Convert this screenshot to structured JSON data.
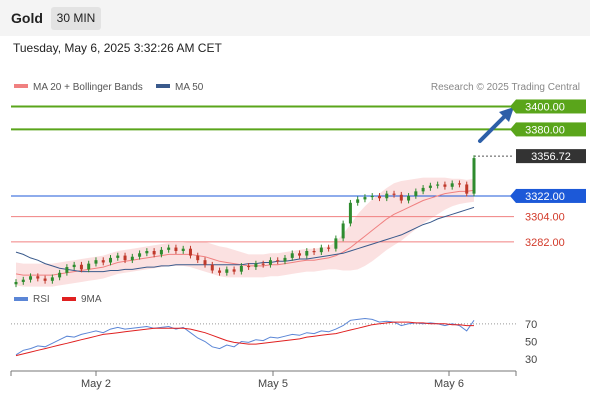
{
  "header": {
    "instrument": "Gold",
    "timeframe": "30 MIN"
  },
  "datetime": "Tuesday, May 6, 2025 3:32:26 AM CET",
  "legend": {
    "ma20_bb": "MA 20 + Bollinger Bands",
    "ma50": "MA 50",
    "rsi": "RSI",
    "ma9": "9MA",
    "credit": "Research © 2025 Trading Central"
  },
  "colors": {
    "resistance": "#5aa51b",
    "support": "#f08080",
    "pivot": "#1c59d8",
    "candle_up": "#2e8b2e",
    "candle_down": "#c0392b",
    "ma50": "#3a5a8c",
    "bb_band": "#fadcdc",
    "rsi": "#5b86d6",
    "rsi_ma": "#e02020",
    "arrow": "#2d5fa8",
    "last_price_box": "#333333"
  },
  "chart_data": [
    {
      "type": "candlestick",
      "x_labels": [
        "May 2",
        "May 5",
        "May 6"
      ],
      "ylim": [
        3240,
        3410
      ],
      "levels": [
        {
          "value": 3400.0,
          "label": "3400.00",
          "kind": "resistance"
        },
        {
          "value": 3380.0,
          "label": "3380.00",
          "kind": "resistance"
        },
        {
          "value": 3356.72,
          "label": "3356.72",
          "kind": "last"
        },
        {
          "value": 3322.0,
          "label": "3322.00",
          "kind": "pivot"
        },
        {
          "value": 3304.0,
          "label": "3304.00",
          "kind": "support"
        },
        {
          "value": 3282.0,
          "label": "3282.00",
          "kind": "support"
        }
      ],
      "close_series": [
        3247,
        3249,
        3252,
        3250,
        3248,
        3251,
        3255,
        3260,
        3262,
        3258,
        3263,
        3266,
        3264,
        3268,
        3270,
        3266,
        3269,
        3272,
        3274,
        3271,
        3275,
        3277,
        3274,
        3276,
        3270,
        3266,
        3262,
        3257,
        3255,
        3258,
        3256,
        3261,
        3260,
        3263,
        3262,
        3266,
        3265,
        3268,
        3272,
        3270,
        3274,
        3273,
        3277,
        3276,
        3285,
        3298,
        3316,
        3319,
        3321,
        3322,
        3320,
        3324,
        3323,
        3318,
        3322,
        3326,
        3329,
        3331,
        3332,
        3330,
        3333,
        3332,
        3324,
        3355
      ],
      "ma20_series": [
        3254,
        3253,
        3253,
        3253,
        3253,
        3253,
        3254,
        3255,
        3256,
        3257,
        3258,
        3259,
        3260,
        3262,
        3264,
        3265,
        3266,
        3267,
        3268,
        3269,
        3270,
        3271,
        3271,
        3271,
        3271,
        3270,
        3269,
        3267,
        3265,
        3264,
        3263,
        3262,
        3261,
        3261,
        3261,
        3262,
        3262,
        3263,
        3264,
        3265,
        3266,
        3266,
        3267,
        3268,
        3270,
        3273,
        3277,
        3282,
        3287,
        3292,
        3297,
        3302,
        3306,
        3309,
        3312,
        3315,
        3318,
        3320,
        3322,
        3324,
        3325,
        3326,
        3326,
        3327
      ],
      "ma50_series": [
        3273,
        3271,
        3268,
        3266,
        3263,
        3261,
        3259,
        3258,
        3257,
        3256,
        3256,
        3256,
        3256,
        3257,
        3257,
        3258,
        3258,
        3259,
        3260,
        3260,
        3261,
        3261,
        3262,
        3262,
        3262,
        3262,
        3262,
        3262,
        3262,
        3262,
        3262,
        3262,
        3263,
        3263,
        3264,
        3264,
        3265,
        3265,
        3266,
        3267,
        3267,
        3268,
        3269,
        3270,
        3271,
        3272,
        3274,
        3276,
        3278,
        3280,
        3282,
        3284,
        3286,
        3288,
        3291,
        3294,
        3297,
        3299,
        3302,
        3304,
        3306,
        3308,
        3310,
        3312
      ],
      "bb_half_width": [
        10,
        10,
        10,
        10,
        10,
        10,
        10,
        10,
        10,
        10,
        10,
        10,
        10,
        10,
        10,
        10,
        10,
        10,
        10,
        10,
        10,
        10,
        10,
        10,
        11,
        12,
        13,
        13,
        13,
        13,
        12,
        11,
        10,
        10,
        10,
        10,
        10,
        10,
        10,
        10,
        10,
        10,
        10,
        10,
        12,
        16,
        20,
        24,
        26,
        27,
        27,
        27,
        27,
        26,
        24,
        22,
        20,
        18,
        16,
        14,
        12,
        11,
        10,
        10
      ]
    },
    {
      "type": "line",
      "name": "RSI",
      "ylim": [
        20,
        80
      ],
      "yticks": [
        70,
        50,
        30
      ],
      "overbought": 70,
      "rsi_series": [
        35,
        40,
        42,
        45,
        44,
        48,
        52,
        56,
        55,
        58,
        60,
        62,
        60,
        64,
        66,
        64,
        65,
        66,
        67,
        65,
        66,
        67,
        64,
        66,
        60,
        54,
        50,
        44,
        42,
        46,
        44,
        50,
        49,
        52,
        51,
        55,
        54,
        56,
        58,
        57,
        60,
        59,
        62,
        61,
        64,
        68,
        74,
        75,
        76,
        75,
        72,
        73,
        72,
        68,
        70,
        71,
        70,
        71,
        70,
        68,
        70,
        68,
        62,
        74
      ],
      "ma9_series": [
        34,
        36,
        38,
        40,
        42,
        44,
        46,
        48,
        50,
        52,
        54,
        56,
        58,
        59,
        60,
        61,
        62,
        63,
        64,
        65,
        65,
        65,
        65,
        65,
        64,
        62,
        60,
        57,
        54,
        51,
        49,
        48,
        47,
        47,
        48,
        49,
        50,
        51,
        52,
        53,
        55,
        56,
        57,
        58,
        59,
        61,
        63,
        65,
        67,
        69,
        70,
        71,
        72,
        72,
        72,
        71,
        71,
        70,
        70,
        70,
        69,
        69,
        68,
        68
      ]
    }
  ]
}
